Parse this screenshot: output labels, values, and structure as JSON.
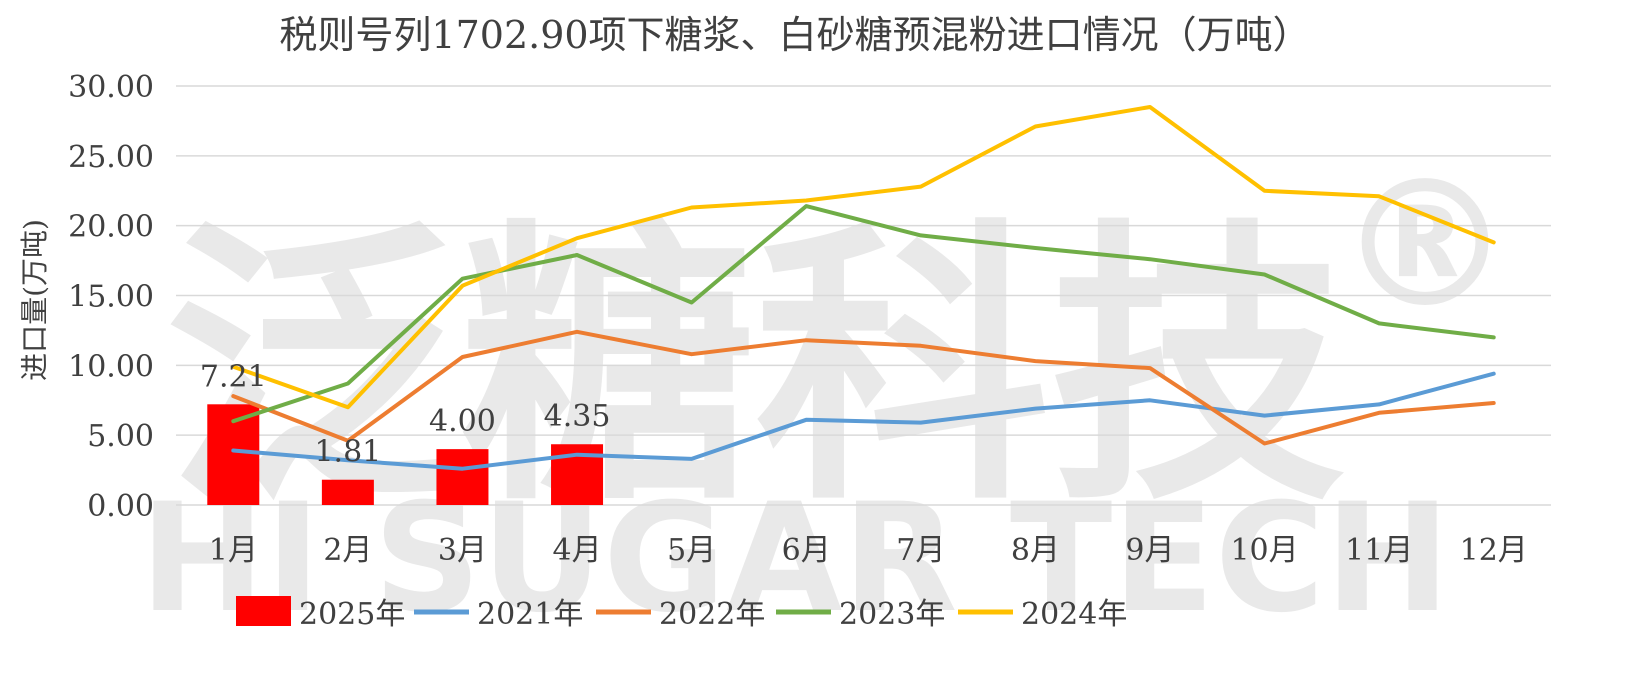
{
  "watermark": {
    "cn": "泛糖科技",
    "en": "HI SUGAR TECH",
    "mark": "®"
  },
  "chart_data": {
    "type": "line",
    "title": "税则号列1702.90项下糖浆、白砂糖预混粉进口情况（万吨）",
    "ylabel": "进口量(万吨)",
    "xlabel": "",
    "categories": [
      "1月",
      "2月",
      "3月",
      "4月",
      "5月",
      "6月",
      "7月",
      "8月",
      "9月",
      "10月",
      "11月",
      "12月"
    ],
    "ylim": [
      0,
      30
    ],
    "yticks": [
      "0.00",
      "5.00",
      "10.00",
      "15.00",
      "20.00",
      "25.00",
      "30.00"
    ],
    "grid": true,
    "legend_position": "bottom",
    "bar_series": {
      "name": "2025年",
      "color": "#ff0000",
      "values": [
        7.21,
        1.81,
        4.0,
        4.35
      ],
      "labels": [
        "7.21",
        "1.81",
        "4.00",
        "4.35"
      ]
    },
    "series": [
      {
        "name": "2021年",
        "color": "#5b9bd5",
        "values": [
          3.9,
          3.2,
          2.6,
          3.6,
          3.3,
          6.1,
          5.9,
          6.9,
          7.5,
          6.4,
          7.2,
          9.4
        ]
      },
      {
        "name": "2022年",
        "color": "#ed7d31",
        "values": [
          7.8,
          4.6,
          10.6,
          12.4,
          10.8,
          11.8,
          11.4,
          10.3,
          9.8,
          4.4,
          6.6,
          7.3
        ]
      },
      {
        "name": "2023年",
        "color": "#70ad47",
        "values": [
          6.0,
          8.7,
          16.2,
          17.9,
          14.5,
          21.4,
          19.3,
          18.4,
          17.6,
          16.5,
          13.0,
          12.0
        ]
      },
      {
        "name": "2024年",
        "color": "#ffc000",
        "values": [
          9.9,
          7.0,
          15.7,
          19.1,
          21.3,
          21.8,
          22.8,
          27.1,
          28.5,
          22.5,
          22.1,
          18.8
        ]
      }
    ]
  }
}
